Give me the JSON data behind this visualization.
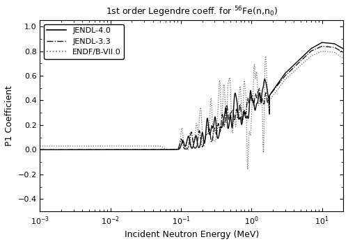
{
  "title": "1st order Legendre coeff. for $^{56}$Fe(n,n$_0$)",
  "xlabel": "Incident Neutron Energy (MeV)",
  "ylabel": "P1 Coefficient",
  "xlim": [
    0.001,
    20
  ],
  "ylim": [
    -0.5,
    1.05
  ],
  "yticks": [
    -0.4,
    -0.2,
    0.0,
    0.2,
    0.4,
    0.6,
    0.8,
    1.0
  ],
  "legend": [
    "JENDL-4.0",
    "JENDL-3.3",
    "ENDF/B-VII.0"
  ],
  "linestyles": [
    "-",
    "-.",
    ":"
  ],
  "linewidths": [
    1.0,
    0.9,
    0.9
  ],
  "colors": [
    "black",
    "black",
    "dimgray"
  ],
  "background": "#ffffff"
}
